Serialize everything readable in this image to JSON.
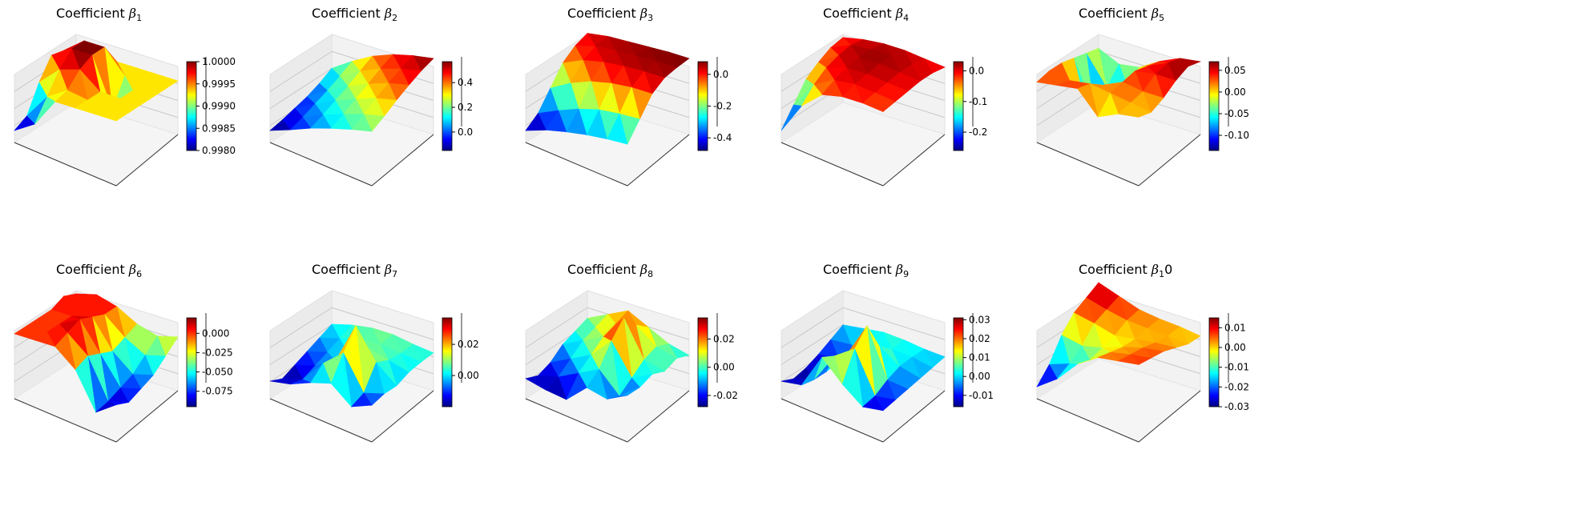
{
  "chart_data": [
    {
      "type": "surface3d",
      "title": {
        "prefix": "Coefficient ",
        "symbol": "β",
        "sub": "1",
        "suffix": ""
      },
      "colormap": "jet",
      "clim": [
        0.998,
        1.0
      ],
      "colorbar_ticks": [
        "0.9980",
        "0.9985",
        "0.9990",
        "0.9995",
        "1.0000"
      ],
      "z": [
        [
          0.9993,
          0.9993,
          0.9993,
          0.9993,
          0.9993,
          0.9993
        ],
        [
          0.9995,
          1.0,
          1.0,
          0.9993,
          0.9993,
          0.9993
        ],
        [
          0.9996,
          1.0,
          1.0,
          0.9985,
          0.9993,
          0.9993
        ],
        [
          0.999,
          0.9996,
          0.9998,
          0.9993,
          0.9993,
          0.9993
        ],
        [
          0.9982,
          0.999,
          0.9994,
          0.9993,
          0.9993,
          0.9993
        ],
        [
          0.998,
          0.9984,
          0.9993,
          0.9993,
          0.9993,
          0.9993
        ]
      ]
    },
    {
      "type": "surface3d",
      "title": {
        "prefix": "Coefficient ",
        "symbol": "β",
        "sub": "2",
        "suffix": ""
      },
      "colormap": "jet",
      "clim": [
        -0.15,
        0.57
      ],
      "colorbar_ticks": [
        "0.0",
        "0.2",
        "0.4"
      ],
      "z": [
        [
          0.1,
          0.25,
          0.38,
          0.47,
          0.53,
          0.57
        ],
        [
          0.02,
          0.17,
          0.3,
          0.4,
          0.47,
          0.52
        ],
        [
          -0.04,
          0.1,
          0.22,
          0.32,
          0.4,
          0.45
        ],
        [
          -0.08,
          0.04,
          0.15,
          0.24,
          0.32,
          0.37
        ],
        [
          -0.12,
          -0.02,
          0.08,
          0.16,
          0.23,
          0.28
        ],
        [
          -0.15,
          -0.07,
          0.02,
          0.09,
          0.15,
          0.2
        ]
      ]
    },
    {
      "type": "surface3d",
      "title": {
        "prefix": "Coefficient ",
        "symbol": "β",
        "sub": "3",
        "suffix": ""
      },
      "colormap": "jet",
      "clim": [
        -0.48,
        0.08
      ],
      "colorbar_ticks": [
        "-0.4",
        "-0.2",
        "0.0"
      ],
      "z": [
        [
          0.02,
          0.05,
          0.06,
          0.07,
          0.08,
          0.08
        ],
        [
          -0.02,
          0.03,
          0.05,
          0.06,
          0.07,
          0.07
        ],
        [
          -0.1,
          -0.02,
          0.02,
          0.04,
          0.05,
          0.05
        ],
        [
          -0.25,
          -0.15,
          -0.08,
          -0.04,
          -0.02,
          -0.02
        ],
        [
          -0.4,
          -0.32,
          -0.25,
          -0.2,
          -0.18,
          -0.17
        ],
        [
          -0.48,
          -0.42,
          -0.38,
          -0.35,
          -0.33,
          -0.32
        ]
      ]
    },
    {
      "type": "surface3d",
      "title": {
        "prefix": "Coefficient ",
        "symbol": "β",
        "sub": "4",
        "suffix": ""
      },
      "colormap": "jet",
      "clim": [
        -0.26,
        0.03
      ],
      "colorbar_ticks": [
        "-0.2",
        "-0.1",
        "0.0"
      ],
      "z": [
        [
          -0.02,
          0.0,
          0.01,
          0.01,
          0.0,
          -0.01
        ],
        [
          -0.03,
          0.01,
          0.02,
          0.02,
          0.01,
          0.0
        ],
        [
          -0.06,
          0.0,
          0.02,
          0.02,
          0.01,
          0.0
        ],
        [
          -0.1,
          -0.02,
          0.01,
          0.01,
          0.0,
          -0.01
        ],
        [
          -0.18,
          -0.06,
          -0.01,
          0.0,
          -0.01,
          -0.02
        ],
        [
          -0.26,
          -0.12,
          -0.04,
          -0.02,
          -0.02,
          -0.03
        ]
      ]
    },
    {
      "type": "surface3d",
      "title": {
        "prefix": "Coefficient ",
        "symbol": "β",
        "sub": "5",
        "suffix": ""
      },
      "colormap": "jet",
      "clim": [
        -0.135,
        0.07
      ],
      "colorbar_ticks": [
        "-0.10",
        "-0.05",
        "0.00",
        "0.05"
      ],
      "z": [
        [
          0.0,
          -0.03,
          -0.02,
          0.02,
          0.05,
          0.06
        ],
        [
          0.01,
          -0.08,
          -0.05,
          0.03,
          0.06,
          0.07
        ],
        [
          0.02,
          -0.13,
          -0.06,
          0.04,
          0.05,
          0.05
        ],
        [
          0.03,
          -0.04,
          0.0,
          0.03,
          0.02,
          0.02
        ],
        [
          0.03,
          0.02,
          0.03,
          0.02,
          0.01,
          0.0
        ],
        [
          0.02,
          0.03,
          0.04,
          -0.03,
          0.0,
          0.01
        ]
      ]
    },
    {
      "type": "surface3d",
      "title": {
        "prefix": "Coefficient ",
        "symbol": "β",
        "sub": "6",
        "suffix": ""
      },
      "colormap": "jet",
      "clim": [
        -0.095,
        0.02
      ],
      "colorbar_ticks": [
        "-0.075",
        "-0.050",
        "-0.025",
        "0.000"
      ],
      "z": [
        [
          0.0,
          0.01,
          0.0,
          -0.02,
          -0.03,
          -0.02
        ],
        [
          0.01,
          0.0,
          0.0,
          -0.03,
          -0.05,
          -0.04
        ],
        [
          0.0,
          0.0,
          0.01,
          -0.04,
          -0.07,
          -0.06
        ],
        [
          0.0,
          0.0,
          0.02,
          -0.03,
          -0.08,
          -0.07
        ],
        [
          0.0,
          0.0,
          0.01,
          -0.02,
          -0.09,
          -0.08
        ],
        [
          0.0,
          0.0,
          0.0,
          -0.03,
          -0.095,
          -0.07
        ]
      ]
    },
    {
      "type": "surface3d",
      "title": {
        "prefix": "Coefficient ",
        "symbol": "β",
        "sub": "7",
        "suffix": ""
      },
      "colormap": "jet",
      "clim": [
        -0.02,
        0.037
      ],
      "colorbar_ticks": [
        "0.00",
        "0.02"
      ],
      "z": [
        [
          0.0,
          0.005,
          0.008,
          0.008,
          0.005,
          0.003
        ],
        [
          -0.005,
          0.0,
          0.005,
          0.006,
          0.004,
          0.002
        ],
        [
          -0.01,
          -0.005,
          0.0,
          0.01,
          0.005,
          0.0
        ],
        [
          -0.015,
          -0.01,
          0.0,
          0.037,
          0.01,
          -0.005
        ],
        [
          -0.02,
          -0.015,
          0.005,
          0.02,
          -0.01,
          -0.005
        ],
        [
          -0.015,
          -0.012,
          -0.005,
          0.0,
          -0.015,
          -0.008
        ]
      ]
    },
    {
      "type": "surface3d",
      "title": {
        "prefix": "Coefficient ",
        "symbol": "β",
        "sub": "8",
        "suffix": ""
      },
      "colormap": "jet",
      "clim": [
        -0.028,
        0.035
      ],
      "colorbar_ticks": [
        "-0.02",
        "0.00",
        "0.02"
      ],
      "z": [
        [
          0.0,
          0.01,
          0.02,
          0.01,
          0.0,
          -0.005
        ],
        [
          -0.005,
          0.005,
          0.015,
          0.02,
          0.005,
          0.0
        ],
        [
          -0.01,
          0.0,
          0.01,
          0.035,
          0.0,
          -0.005
        ],
        [
          -0.02,
          -0.01,
          0.0,
          0.02,
          -0.01,
          0.0
        ],
        [
          -0.025,
          -0.02,
          -0.01,
          0.0,
          -0.02,
          -0.005
        ],
        [
          -0.02,
          -0.025,
          -0.028,
          -0.01,
          -0.015,
          -0.005
        ]
      ]
    },
    {
      "type": "surface3d",
      "title": {
        "prefix": "Coefficient ",
        "symbol": "β",
        "sub": "9",
        "suffix": ""
      },
      "colormap": "jet",
      "clim": [
        -0.016,
        0.031
      ],
      "colorbar_ticks": [
        "-0.01",
        "0.00",
        "0.01",
        "0.02",
        "0.03"
      ],
      "z": [
        [
          0.0,
          0.002,
          0.004,
          0.003,
          0.001,
          0.0
        ],
        [
          -0.005,
          -0.004,
          0.0,
          0.002,
          0.001,
          -0.002
        ],
        [
          -0.01,
          -0.008,
          -0.005,
          0.01,
          0.0,
          -0.004
        ],
        [
          -0.014,
          -0.012,
          0.005,
          0.031,
          -0.004,
          -0.006
        ],
        [
          -0.016,
          -0.012,
          0.01,
          0.02,
          -0.01,
          -0.008
        ],
        [
          -0.012,
          -0.01,
          0.015,
          0.0,
          -0.012,
          -0.01
        ]
      ]
    },
    {
      "type": "surface3d",
      "title": {
        "prefix": "Coefficient ",
        "symbol": "β",
        "sub": "1",
        "suffix": "0"
      },
      "colormap": "jet",
      "clim": [
        -0.03,
        0.015
      ],
      "colorbar_ticks": [
        "-0.03",
        "-0.02",
        "-0.01",
        "0.00",
        "0.01"
      ],
      "z": [
        [
          0.015,
          0.01,
          0.005,
          0.003,
          0.002,
          0.0
        ],
        [
          0.01,
          0.006,
          0.003,
          0.002,
          0.001,
          0.0
        ],
        [
          0.005,
          0.002,
          -0.002,
          0.0,
          0.002,
          0.003
        ],
        [
          -0.005,
          -0.008,
          -0.005,
          0.0,
          0.004,
          0.006
        ],
        [
          -0.02,
          -0.015,
          -0.008,
          0.002,
          0.005,
          0.007
        ],
        [
          -0.03,
          -0.02,
          -0.005,
          0.004,
          0.006,
          0.008
        ]
      ]
    }
  ]
}
